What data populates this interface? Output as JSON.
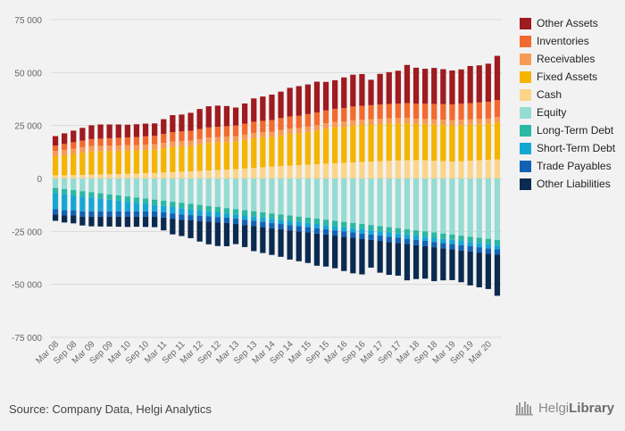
{
  "source": "Source: Company Data, Helgi Analytics",
  "brand": {
    "logo_icon": "helgi-library-logo-icon",
    "name_part1": "Helgi",
    "name_part2": "Library"
  },
  "legend": [
    {
      "label": "Other Assets",
      "color": "#9e1b1f"
    },
    {
      "label": "Inventories",
      "color": "#f26a2e"
    },
    {
      "label": "Receivables",
      "color": "#f79a55"
    },
    {
      "label": "Fixed Assets",
      "color": "#f4b400"
    },
    {
      "label": "Cash",
      "color": "#fcd58a"
    },
    {
      "label": "Equity",
      "color": "#95dcd3"
    },
    {
      "label": "Long-Term Debt",
      "color": "#2bb8a4"
    },
    {
      "label": "Short-Term Debt",
      "color": "#15a7d4"
    },
    {
      "label": "Trade Payables",
      "color": "#1162b4"
    },
    {
      "label": "Other Liabilities",
      "color": "#0b2a4f"
    }
  ],
  "chart_data": {
    "type": "bar",
    "stacked": true,
    "title": "",
    "xlabel": "",
    "ylabel": "",
    "ylim": [
      -75000,
      75000
    ],
    "yticks": [
      75000,
      50000,
      25000,
      0,
      -25000,
      -50000,
      -75000
    ],
    "ytick_labels": [
      "75 000",
      "50 000",
      "25 000",
      "0",
      "-25 000",
      "-50 000",
      "-75 000"
    ],
    "grid": true,
    "legend_position": "right",
    "categories": [
      "Mar 08",
      "Jun 08",
      "Sep 08",
      "Dec 08",
      "Mar 09",
      "Jun 09",
      "Sep 09",
      "Dec 09",
      "Mar 10",
      "Jun 10",
      "Sep 10",
      "Dec 10",
      "Mar 11",
      "Jun 11",
      "Sep 11",
      "Dec 11",
      "Mar 12",
      "Jun 12",
      "Sep 12",
      "Dec 12",
      "Mar 13",
      "Jun 13",
      "Sep 13",
      "Dec 13",
      "Mar 14",
      "Jun 14",
      "Sep 14",
      "Dec 14",
      "Mar 15",
      "Jun 15",
      "Sep 15",
      "Dec 15",
      "Mar 16",
      "Jun 16",
      "Sep 16",
      "Dec 16",
      "Mar 17",
      "Jun 17",
      "Sep 17",
      "Dec 17",
      "Mar 18",
      "Jun 18",
      "Sep 18",
      "Dec 18",
      "Mar 19",
      "Jun 19",
      "Sep 19",
      "Dec 19",
      "Mar 20",
      "Jun 20"
    ],
    "x_tick_labels_shown": [
      "Mar 08",
      "Sep 08",
      "Mar 09",
      "Sep 09",
      "Mar 10",
      "Sep 10",
      "Mar 11",
      "Sep 11",
      "Mar 12",
      "Sep 12",
      "Mar 13",
      "Sep 13",
      "Mar 14",
      "Sep 14",
      "Mar 15",
      "Sep 15",
      "Mar 16",
      "Sep 16",
      "Mar 17",
      "Sep 17",
      "Mar 18",
      "Sep 18",
      "Mar 19",
      "Sep 19",
      "Mar 20"
    ],
    "series": [
      {
        "name": "Cash",
        "side": "positive",
        "values": [
          1500,
          1500,
          1600,
          1700,
          1800,
          1900,
          2000,
          2100,
          2200,
          2300,
          2500,
          2600,
          2800,
          3000,
          3200,
          3400,
          3600,
          3800,
          4000,
          4200,
          4400,
          4700,
          5000,
          5300,
          5600,
          5900,
          6100,
          6300,
          6500,
          6700,
          7000,
          7200,
          7400,
          7600,
          7800,
          8000,
          8200,
          8400,
          8500,
          8600,
          8700,
          8600,
          8400,
          8200,
          8000,
          8200,
          8400,
          8600,
          8800,
          9000
        ]
      },
      {
        "name": "Fixed Assets",
        "side": "positive",
        "values": [
          9000,
          9500,
          10000,
          10500,
          11000,
          11000,
          11000,
          11000,
          11000,
          11000,
          11000,
          11000,
          11500,
          12000,
          12000,
          12000,
          12500,
          13000,
          13000,
          13000,
          13000,
          13500,
          14000,
          14000,
          14000,
          14500,
          15000,
          15000,
          15500,
          16000,
          16500,
          17000,
          17000,
          17500,
          17500,
          17500,
          17500,
          17500,
          17500,
          17500,
          17000,
          17000,
          17000,
          17000,
          17000,
          17000,
          17000,
          17000,
          17000,
          17500
        ]
      },
      {
        "name": "Receivables",
        "side": "positive",
        "values": [
          2500,
          2500,
          2500,
          2500,
          2500,
          2500,
          2500,
          2500,
          2500,
          2500,
          2500,
          2500,
          2500,
          2500,
          2500,
          2500,
          2500,
          2500,
          2500,
          2500,
          2500,
          2500,
          2500,
          2500,
          2500,
          2500,
          2500,
          2500,
          2500,
          2500,
          2500,
          2500,
          2500,
          2500,
          2500,
          2500,
          2500,
          2500,
          2500,
          2500,
          2500,
          2500,
          2500,
          2500,
          2500,
          2500,
          2500,
          2500,
          2500,
          2500
        ]
      },
      {
        "name": "Inventories",
        "side": "positive",
        "values": [
          2500,
          2800,
          3000,
          3200,
          3300,
          3400,
          3500,
          3600,
          3700,
          3800,
          3900,
          4000,
          4200,
          4400,
          4500,
          4600,
          4700,
          4800,
          4900,
          5000,
          5100,
          5200,
          5300,
          5400,
          5500,
          5600,
          5700,
          5800,
          5900,
          6000,
          6100,
          6200,
          6300,
          6400,
          6500,
          6600,
          6700,
          6800,
          6900,
          7000,
          7100,
          7200,
          7300,
          7400,
          7500,
          7600,
          7700,
          7800,
          7900,
          8000
        ]
      },
      {
        "name": "Other Assets",
        "side": "positive",
        "values": [
          4500,
          5000,
          5500,
          6000,
          6500,
          6700,
          6500,
          6300,
          6000,
          6000,
          6000,
          5900,
          7000,
          8000,
          8000,
          8500,
          9500,
          10000,
          10000,
          9500,
          8500,
          9500,
          11000,
          11500,
          12000,
          12500,
          13500,
          14000,
          14000,
          14500,
          13500,
          13500,
          14500,
          15000,
          15000,
          12000,
          14500,
          15000,
          15500,
          18000,
          17000,
          16500,
          17000,
          16500,
          16000,
          16200,
          17500,
          17500,
          18000,
          20900
        ]
      },
      {
        "name": "Equity",
        "side": "negative",
        "values": [
          4500,
          5000,
          5500,
          6000,
          6500,
          7000,
          7500,
          8000,
          8500,
          9000,
          9500,
          10000,
          10500,
          11000,
          11500,
          12000,
          12500,
          13000,
          13500,
          14000,
          14500,
          15000,
          15500,
          16000,
          16500,
          17000,
          17500,
          18000,
          18500,
          19000,
          19500,
          20000,
          20500,
          21000,
          21500,
          22000,
          22500,
          23000,
          23500,
          24000,
          24500,
          25000,
          25500,
          26000,
          26500,
          27000,
          27500,
          28000,
          28500,
          29000
        ]
      },
      {
        "name": "Long-Term Debt",
        "side": "negative",
        "values": [
          2500,
          2500,
          2500,
          2500,
          2500,
          2500,
          2500,
          2500,
          2500,
          2500,
          2500,
          2500,
          2500,
          2500,
          2500,
          2500,
          2500,
          2500,
          2500,
          2500,
          2500,
          2500,
          2500,
          2500,
          2500,
          2500,
          2500,
          2500,
          2500,
          2500,
          2500,
          2500,
          2500,
          2500,
          2500,
          2500,
          2500,
          2500,
          2500,
          2500,
          2500,
          2500,
          2500,
          2500,
          2500,
          2500,
          2500,
          2500,
          2500,
          2500
        ]
      },
      {
        "name": "Short-Term Debt",
        "side": "negative",
        "values": [
          7500,
          7500,
          7000,
          7000,
          6500,
          6000,
          5500,
          5000,
          4500,
          4000,
          3500,
          3000,
          3000,
          3000,
          3000,
          2800,
          2600,
          2400,
          2200,
          2000,
          2000,
          2000,
          2000,
          2000,
          2000,
          2000,
          2000,
          2000,
          2000,
          2000,
          2000,
          2000,
          2000,
          2000,
          2000,
          2000,
          2000,
          2000,
          2000,
          2000,
          2000,
          2000,
          2000,
          2000,
          2000,
          2000,
          2000,
          2000,
          2000,
          2000
        ]
      },
      {
        "name": "Trade Payables",
        "side": "negative",
        "values": [
          2500,
          2500,
          2500,
          2500,
          2500,
          2500,
          2500,
          2500,
          2500,
          2500,
          2500,
          2500,
          2500,
          2500,
          2500,
          2500,
          2500,
          2500,
          2500,
          2500,
          2500,
          2500,
          2500,
          2500,
          2500,
          2500,
          2500,
          2500,
          2500,
          2500,
          2500,
          2500,
          2500,
          2500,
          2500,
          2500,
          2500,
          2500,
          2500,
          2500,
          2500,
          2500,
          2500,
          2500,
          2500,
          2500,
          2500,
          2500,
          2500,
          2500
        ]
      },
      {
        "name": "Other Liabilities",
        "side": "negative",
        "values": [
          3000,
          3300,
          3700,
          4200,
          4600,
          4700,
          4700,
          4800,
          4900,
          4800,
          4900,
          5000,
          6000,
          7400,
          7700,
          8400,
          9700,
          10700,
          11200,
          11000,
          9500,
          10400,
          11800,
          12200,
          12600,
          13000,
          13800,
          14100,
          14400,
          15200,
          15100,
          15400,
          16200,
          16800,
          16800,
          13100,
          15000,
          15500,
          15400,
          17100,
          16000,
          15300,
          16000,
          15100,
          14500,
          15000,
          16000,
          16400,
          16700,
          19400
        ]
      }
    ]
  }
}
